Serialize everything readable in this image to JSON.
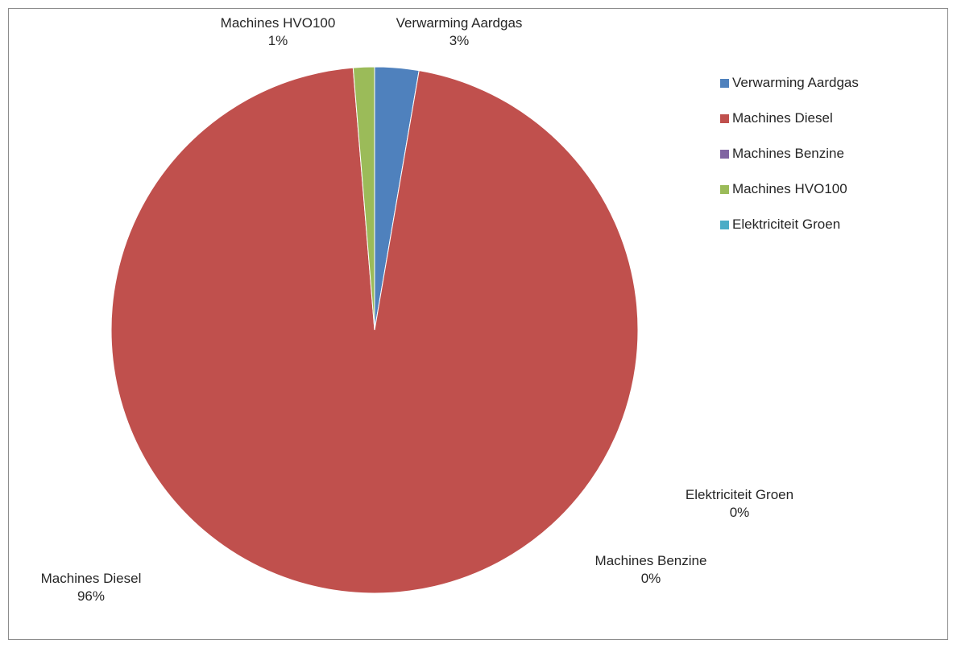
{
  "chart_data": {
    "type": "pie",
    "slices": [
      {
        "name": "Verwarming Aardgas",
        "value": 2.7,
        "label_value": "3%",
        "color": "#4f81bd"
      },
      {
        "name": "Machines Diesel",
        "value": 96.0,
        "label_value": "96%",
        "color": "#c0504d"
      },
      {
        "name": "Machines Benzine",
        "value": 0.0,
        "label_value": "0%",
        "color": "#8064a2"
      },
      {
        "name": "Machines HVO100",
        "value": 1.3,
        "label_value": "1%",
        "color": "#9bbb59"
      },
      {
        "name": "Elektriciteit Groen",
        "value": 0.0,
        "label_value": "0%",
        "color": "#4bacc6"
      }
    ],
    "legend_position": "right",
    "start_angle": "12 o'clock, clockwise"
  }
}
